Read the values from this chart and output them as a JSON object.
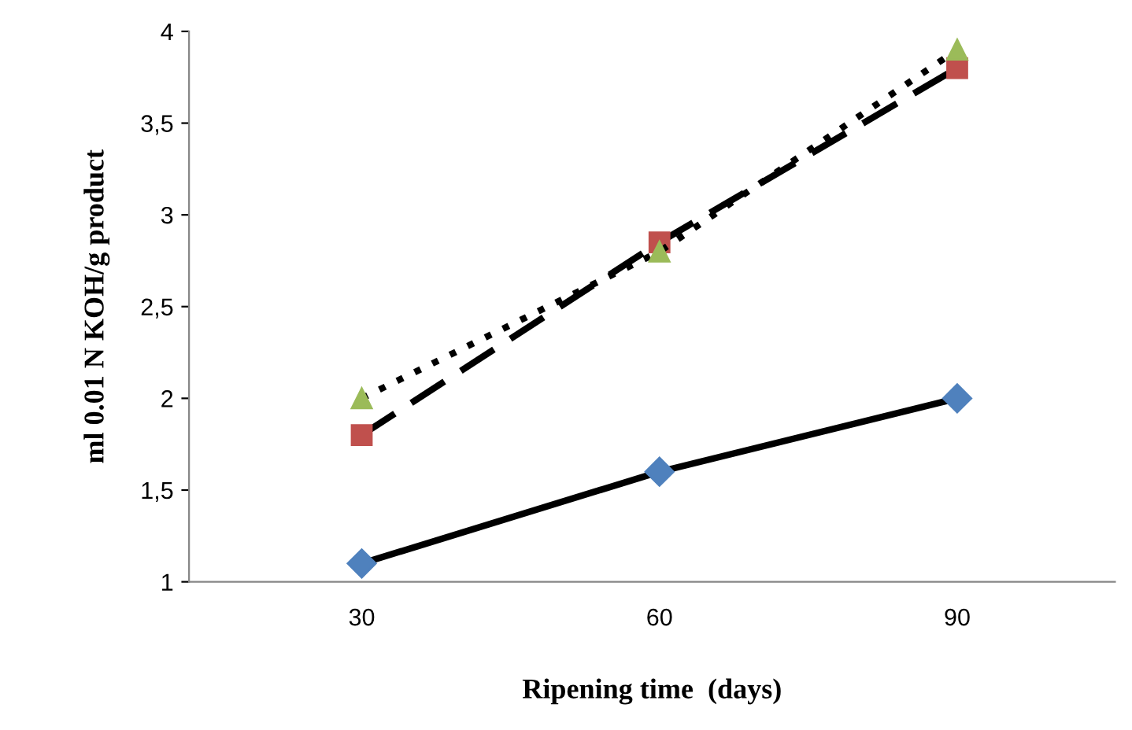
{
  "chart_data": {
    "type": "line",
    "xlabel": "Ripening time  (days)",
    "ylabel": "ml 0.01 N KOH/g product",
    "categories": [
      "30",
      "60",
      "90"
    ],
    "series": [
      {
        "color": "#4f81bd",
        "marker": "diamond",
        "line_style": "solid",
        "values": [
          1.1,
          1.6,
          2.0
        ]
      },
      {
        "color": "#c0504d",
        "marker": "square",
        "line_style": "dashed",
        "values": [
          1.8,
          2.85,
          3.8
        ]
      },
      {
        "color": "#9bbb59",
        "marker": "triangle",
        "line_style": "dotted",
        "values": [
          2.0,
          2.8,
          3.9
        ]
      }
    ],
    "ylim": [
      1,
      4
    ],
    "yticks": [
      1,
      {
        "value": 1.5,
        "label": "1,5"
      },
      2,
      {
        "value": 2.5,
        "label": "2,5"
      },
      3,
      {
        "value": 3.5,
        "label": "3,5"
      },
      4
    ],
    "grid": false,
    "legend": false
  }
}
